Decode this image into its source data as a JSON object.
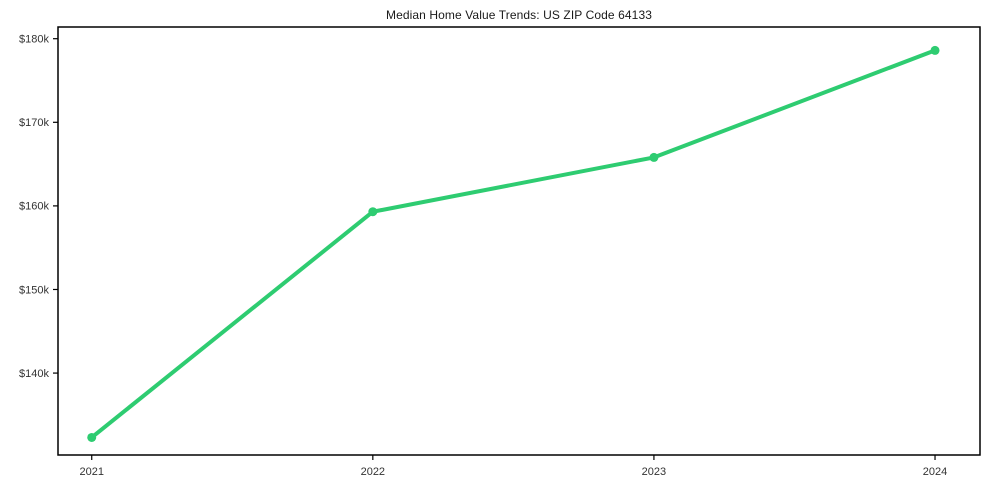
{
  "page": {
    "background_color": "#ffffff"
  },
  "chart_data": {
    "type": "line",
    "title": "Median Home Value Trends: US ZIP Code 64133",
    "x": [
      2021,
      2022,
      2023,
      2024
    ],
    "series": [
      {
        "name": "Median Home Value",
        "values": [
          132300,
          159300,
          165800,
          178600
        ],
        "color": "#2ecc71"
      }
    ],
    "xlabel": "",
    "ylabel": "",
    "xlim": [
      2020.88,
      2024.16
    ],
    "ylim": [
      130200,
      181400
    ],
    "xticks": {
      "values": [
        2021,
        2022,
        2023,
        2024
      ],
      "labels": [
        "2021",
        "2022",
        "2023",
        "2024"
      ]
    },
    "yticks": {
      "values": [
        140000,
        150000,
        160000,
        170000,
        180000
      ],
      "labels": [
        "$140k",
        "$150k",
        "$160k",
        "$170k",
        "$180k"
      ]
    },
    "grid": false,
    "legend_position": "none",
    "marker": "circle",
    "line_width": 4,
    "marker_radius": 4.5,
    "axis_color": "#000000",
    "tick_label_color": "#333333",
    "title_color": "#1a1a1a"
  }
}
